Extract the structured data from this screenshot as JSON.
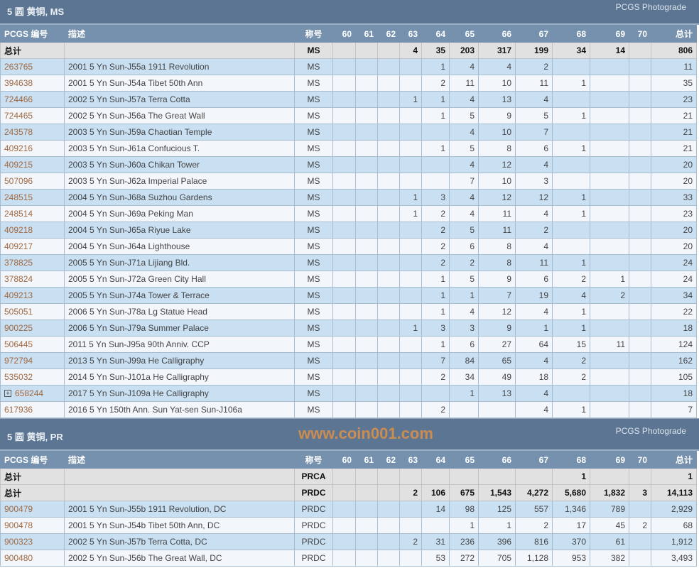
{
  "columns": [
    "PCGS 编号",
    "描述",
    "称号",
    "60",
    "61",
    "62",
    "63",
    "64",
    "65",
    "66",
    "67",
    "68",
    "69",
    "70",
    "总计"
  ],
  "sections": [
    {
      "title": "5 圆 黄铜, MS",
      "photograde": "PCGS Photograde",
      "totals": [
        {
          "label": "总计",
          "designation": "MS",
          "grades": [
            "",
            "",
            "",
            "4",
            "35",
            "203",
            "317",
            "199",
            "34",
            "14",
            ""
          ],
          "total": "806"
        }
      ],
      "rows": [
        {
          "pcgs": "263765",
          "desc": "2001 5 Yn Sun-J55a 1911 Revolution",
          "designation": "MS",
          "grades": [
            "",
            "",
            "",
            "",
            "1",
            "4",
            "4",
            "2",
            "",
            "",
            ""
          ],
          "total": "11"
        },
        {
          "pcgs": "394638",
          "desc": "2001 5 Yn Sun-J54a Tibet 50th Ann",
          "designation": "MS",
          "grades": [
            "",
            "",
            "",
            "",
            "2",
            "11",
            "10",
            "11",
            "1",
            "",
            ""
          ],
          "total": "35"
        },
        {
          "pcgs": "724466",
          "desc": "2002 5 Yn Sun-J57a Terra Cotta",
          "designation": "MS",
          "grades": [
            "",
            "",
            "",
            "1",
            "1",
            "4",
            "13",
            "4",
            "",
            "",
            ""
          ],
          "total": "23"
        },
        {
          "pcgs": "724465",
          "desc": "2002 5 Yn Sun-J56a The Great Wall",
          "designation": "MS",
          "grades": [
            "",
            "",
            "",
            "",
            "1",
            "5",
            "9",
            "5",
            "1",
            "",
            ""
          ],
          "total": "21"
        },
        {
          "pcgs": "243578",
          "desc": "2003 5 Yn Sun-J59a Chaotian Temple",
          "designation": "MS",
          "grades": [
            "",
            "",
            "",
            "",
            "",
            "4",
            "10",
            "7",
            "",
            "",
            ""
          ],
          "total": "21"
        },
        {
          "pcgs": "409216",
          "desc": "2003 5 Yn Sun-J61a Confucious T.",
          "designation": "MS",
          "grades": [
            "",
            "",
            "",
            "",
            "1",
            "5",
            "8",
            "6",
            "1",
            "",
            ""
          ],
          "total": "21"
        },
        {
          "pcgs": "409215",
          "desc": "2003 5 Yn Sun-J60a Chikan Tower",
          "designation": "MS",
          "grades": [
            "",
            "",
            "",
            "",
            "",
            "4",
            "12",
            "4",
            "",
            "",
            ""
          ],
          "total": "20"
        },
        {
          "pcgs": "507096",
          "desc": "2003 5 Yn Sun-J62a Imperial Palace",
          "designation": "MS",
          "grades": [
            "",
            "",
            "",
            "",
            "",
            "7",
            "10",
            "3",
            "",
            "",
            ""
          ],
          "total": "20"
        },
        {
          "pcgs": "248515",
          "desc": "2004 5 Yn Sun-J68a Suzhou Gardens",
          "designation": "MS",
          "grades": [
            "",
            "",
            "",
            "1",
            "3",
            "4",
            "12",
            "12",
            "1",
            "",
            ""
          ],
          "total": "33"
        },
        {
          "pcgs": "248514",
          "desc": "2004 5 Yn Sun-J69a Peking Man",
          "designation": "MS",
          "grades": [
            "",
            "",
            "",
            "1",
            "2",
            "4",
            "11",
            "4",
            "1",
            "",
            ""
          ],
          "total": "23"
        },
        {
          "pcgs": "409218",
          "desc": "2004 5 Yn Sun-J65a Riyue Lake",
          "designation": "MS",
          "grades": [
            "",
            "",
            "",
            "",
            "2",
            "5",
            "11",
            "2",
            "",
            "",
            ""
          ],
          "total": "20"
        },
        {
          "pcgs": "409217",
          "desc": "2004 5 Yn Sun-J64a Lighthouse",
          "designation": "MS",
          "grades": [
            "",
            "",
            "",
            "",
            "2",
            "6",
            "8",
            "4",
            "",
            "",
            ""
          ],
          "total": "20"
        },
        {
          "pcgs": "378825",
          "desc": "2005 5 Yn Sun-J71a Lijiang Bld.",
          "designation": "MS",
          "grades": [
            "",
            "",
            "",
            "",
            "2",
            "2",
            "8",
            "11",
            "1",
            "",
            ""
          ],
          "total": "24"
        },
        {
          "pcgs": "378824",
          "desc": "2005 5 Yn Sun-J72a Green City Hall",
          "designation": "MS",
          "grades": [
            "",
            "",
            "",
            "",
            "1",
            "5",
            "9",
            "6",
            "2",
            "1",
            ""
          ],
          "total": "24"
        },
        {
          "pcgs": "409213",
          "desc": "2005 5 Yn Sun-J74a Tower & Terrace",
          "designation": "MS",
          "grades": [
            "",
            "",
            "",
            "",
            "1",
            "1",
            "7",
            "19",
            "4",
            "2",
            ""
          ],
          "total": "34"
        },
        {
          "pcgs": "505051",
          "desc": "2006 5 Yn Sun-J78a Lg Statue Head",
          "designation": "MS",
          "grades": [
            "",
            "",
            "",
            "",
            "1",
            "4",
            "12",
            "4",
            "1",
            "",
            ""
          ],
          "total": "22"
        },
        {
          "pcgs": "900225",
          "desc": "2006 5 Yn Sun-J79a Summer Palace",
          "designation": "MS",
          "grades": [
            "",
            "",
            "",
            "1",
            "3",
            "3",
            "9",
            "1",
            "1",
            "",
            ""
          ],
          "total": "18"
        },
        {
          "pcgs": "506445",
          "desc": "2011 5 Yn Sun-J95a 90th Anniv. CCP",
          "designation": "MS",
          "grades": [
            "",
            "",
            "",
            "",
            "1",
            "6",
            "27",
            "64",
            "15",
            "11",
            ""
          ],
          "total": "124"
        },
        {
          "pcgs": "972794",
          "desc": "2013 5 Yn Sun-J99a He Calligraphy",
          "designation": "MS",
          "grades": [
            "",
            "",
            "",
            "",
            "7",
            "84",
            "65",
            "4",
            "2",
            "",
            ""
          ],
          "total": "162"
        },
        {
          "pcgs": "535032",
          "desc": "2014 5 Yn Sun-J101a He Calligraphy",
          "designation": "MS",
          "grades": [
            "",
            "",
            "",
            "",
            "2",
            "34",
            "49",
            "18",
            "2",
            "",
            ""
          ],
          "total": "105"
        },
        {
          "pcgs": "658244",
          "desc": "2017 5 Yn Sun-J109a He Calligraphy",
          "designation": "MS",
          "expand": true,
          "grades": [
            "",
            "",
            "",
            "",
            "",
            "1",
            "13",
            "4",
            "",
            "",
            ""
          ],
          "total": "18"
        },
        {
          "pcgs": "617936",
          "desc": "2016 5 Yn 150th Ann. Sun Yat-sen Sun-J106a",
          "designation": "MS",
          "grades": [
            "",
            "",
            "",
            "",
            "2",
            "",
            "",
            "4",
            "1",
            "",
            ""
          ],
          "total": "7"
        }
      ]
    },
    {
      "title": "5 圆 黄铜, PR",
      "photograde": "PCGS Photograde",
      "totals": [
        {
          "label": "总计",
          "designation": "PRCA",
          "grades": [
            "",
            "",
            "",
            "",
            "",
            "",
            "",
            "",
            "1",
            "",
            ""
          ],
          "total": "1"
        },
        {
          "label": "总计",
          "designation": "PRDC",
          "grades": [
            "",
            "",
            "",
            "2",
            "106",
            "675",
            "1,543",
            "4,272",
            "5,680",
            "1,832",
            "3"
          ],
          "total": "14,113"
        }
      ],
      "rows": [
        {
          "pcgs": "900479",
          "desc": "2001 5 Yn Sun-J55b 1911 Revolution, DC",
          "designation": "PRDC",
          "grades": [
            "",
            "",
            "",
            "",
            "14",
            "98",
            "125",
            "557",
            "1,346",
            "789",
            ""
          ],
          "total": "2,929"
        },
        {
          "pcgs": "900478",
          "desc": "2001 5 Yn Sun-J54b Tibet 50th Ann, DC",
          "designation": "PRDC",
          "grades": [
            "",
            "",
            "",
            "",
            "",
            "1",
            "1",
            "2",
            "17",
            "45",
            "2"
          ],
          "total": "68"
        },
        {
          "pcgs": "900323",
          "desc": "2002 5 Yn Sun-J57b Terra Cotta, DC",
          "designation": "PRDC",
          "grades": [
            "",
            "",
            "",
            "2",
            "31",
            "236",
            "396",
            "816",
            "370",
            "61",
            ""
          ],
          "total": "1,912"
        },
        {
          "pcgs": "900480",
          "desc": "2002 5 Yn Sun-J56b The Great Wall, DC",
          "designation": "PRDC",
          "grades": [
            "",
            "",
            "",
            "",
            "53",
            "272",
            "705",
            "1,128",
            "953",
            "382",
            ""
          ],
          "total": "3,493"
        }
      ]
    }
  ],
  "watermark": "www.coin001.com",
  "colors": {
    "header": "#5c7592",
    "column_header": "#7591ad",
    "link": "#a2683f",
    "row_alt": "#c9dff2"
  }
}
